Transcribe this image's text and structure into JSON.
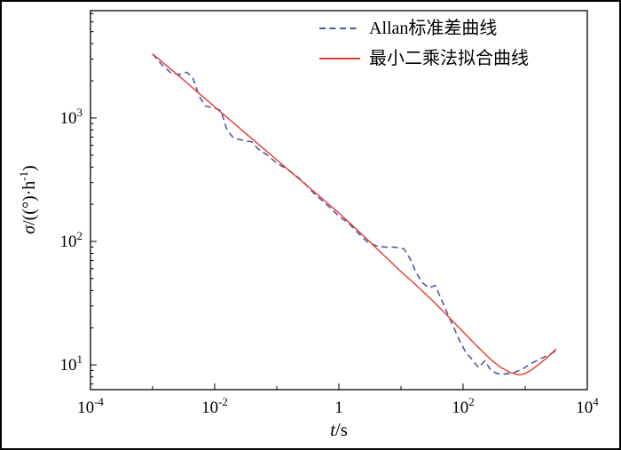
{
  "figure": {
    "background": "#ffffff",
    "border_color": "#000000"
  },
  "chart_data": {
    "type": "line",
    "title": "",
    "x_scale": "log",
    "y_scale": "log",
    "xlim": [
      0.0001,
      10000
    ],
    "ylim": [
      6.3,
      7400
    ],
    "grid": false,
    "legend_position": "top-inside",
    "xlabel_var": "t",
    "xlabel_rest": "/s",
    "ylabel_var": "σ",
    "ylabel_mid": "/((°)·h",
    "ylabel_sup": "-1",
    "ylabel_tail": ")",
    "x_ticks": [
      {
        "v": -4,
        "base": "10",
        "exp": "-4"
      },
      {
        "v": -2,
        "base": "10",
        "exp": "-2"
      },
      {
        "v": 0,
        "base": "1",
        "exp": ""
      },
      {
        "v": 2,
        "base": "10",
        "exp": "2"
      },
      {
        "v": 4,
        "base": "10",
        "exp": "4"
      }
    ],
    "x_minor_ticks": [
      -3,
      -1,
      1,
      3
    ],
    "y_ticks": [
      {
        "v": 1,
        "base": "10",
        "exp": "1"
      },
      {
        "v": 2,
        "base": "10",
        "exp": "2"
      },
      {
        "v": 3,
        "base": "10",
        "exp": "3"
      }
    ],
    "series": [
      {
        "name": "Allan标准差曲线",
        "color": "#4c59a8",
        "style": "dashed",
        "t": [
          0.001,
          0.00141,
          0.002,
          0.00282,
          0.00355,
          0.00447,
          0.00562,
          0.00708,
          0.01,
          0.0126,
          0.0158,
          0.02,
          0.0282,
          0.0398,
          0.0501,
          0.0708,
          0.1,
          0.141,
          0.2,
          0.282,
          0.398,
          0.562,
          0.794,
          1,
          1.41,
          2,
          2.82,
          3.98,
          5.62,
          7.94,
          11.2,
          14.1,
          17.8,
          22.4,
          28.2,
          35.5,
          44.7,
          56.2,
          70.8,
          89.1,
          112,
          141,
          178,
          224,
          282,
          355,
          447,
          631,
          891,
          1260,
          1780,
          2510,
          3160
        ],
        "sigma": [
          3300,
          2700,
          2300,
          2250,
          2350,
          2100,
          1500,
          1250,
          1200,
          1150,
          800,
          690,
          660,
          640,
          560,
          500,
          430,
          390,
          345,
          295,
          245,
          210,
          180,
          160,
          142,
          118,
          100,
          92,
          90,
          90,
          87,
          72,
          55,
          46,
          42,
          44,
          34,
          26,
          20,
          15.5,
          12.5,
          11,
          9.5,
          10.8,
          9.0,
          8.5,
          8.4,
          8.6,
          9.2,
          10.3,
          11.2,
          12.2,
          13.0
        ]
      },
      {
        "name": "最小二乘法拟合曲线",
        "color": "#e8392e",
        "style": "solid",
        "t": [
          0.001,
          0.00178,
          0.00316,
          0.00562,
          0.01,
          0.0178,
          0.0316,
          0.0562,
          0.1,
          0.178,
          0.316,
          0.562,
          1,
          1.78,
          3.16,
          5.62,
          10,
          17.8,
          31.6,
          56.2,
          100,
          141,
          200,
          282,
          398,
          562,
          794,
          1000,
          1260,
          1580,
          2240,
          3160
        ],
        "sigma": [
          3300,
          2590,
          2030,
          1580,
          1230,
          960,
          750,
          586,
          458,
          357,
          279,
          218,
          170,
          130,
          99,
          75,
          57,
          44,
          33.5,
          25,
          18.5,
          15.5,
          13,
          11,
          9.6,
          8.7,
          8.3,
          8.5,
          9.1,
          9.9,
          11.4,
          13.5
        ]
      }
    ]
  }
}
